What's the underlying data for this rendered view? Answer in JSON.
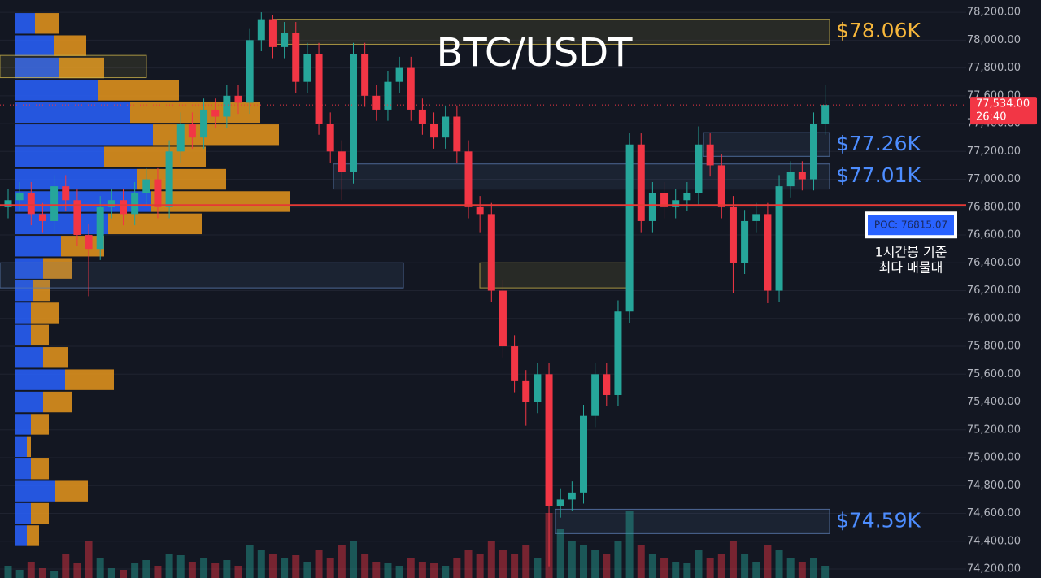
{
  "chart_data": {
    "type": "candlestick",
    "title": "BTC/USDT",
    "ylim": [
      74136,
      78288
    ],
    "yticks": [
      {
        "value": 78200,
        "label": "78,200.00"
      },
      {
        "value": 78000,
        "label": "78,000.00"
      },
      {
        "value": 77800,
        "label": "77,800.00"
      },
      {
        "value": 77600,
        "label": "77,600.00"
      },
      {
        "value": 77400,
        "label": "77,400.00"
      },
      {
        "value": 77200,
        "label": "77,200.00"
      },
      {
        "value": 77000,
        "label": "77,000.00"
      },
      {
        "value": 76800,
        "label": "76,800.00"
      },
      {
        "value": 76600,
        "label": "76,600.00"
      },
      {
        "value": 76400,
        "label": "76,400.00"
      },
      {
        "value": 76200,
        "label": "76,200.00"
      },
      {
        "value": 76000,
        "label": "76,000.00"
      },
      {
        "value": 75800,
        "label": "75,800.00"
      },
      {
        "value": 75600,
        "label": "75,600.00"
      },
      {
        "value": 75400,
        "label": "75,400.00"
      },
      {
        "value": 75200,
        "label": "75,200.00"
      },
      {
        "value": 75000,
        "label": "75,000.00"
      },
      {
        "value": 74800,
        "label": "74,800.00"
      },
      {
        "value": 74600,
        "label": "74,600.00"
      },
      {
        "value": 74400,
        "label": "74,400.00"
      },
      {
        "value": 74200,
        "label": "74,200.00"
      }
    ],
    "grid": true,
    "up_color": "#26a69a",
    "down_color": "#f23645",
    "ohlc": {
      "open": [
        76800,
        76850,
        76900,
        76750,
        76700,
        76950,
        76850,
        76600,
        76500,
        76800,
        76850,
        76750,
        76900,
        77000,
        76800,
        77200,
        77400,
        77300,
        77500,
        77450,
        77600,
        77550,
        78000,
        78150,
        77950,
        78050,
        77700,
        77900,
        77400,
        77200,
        77050,
        77900,
        77600,
        77500,
        77700,
        77800,
        77500,
        77400,
        77300,
        77450,
        77200,
        76800,
        76750,
        76200,
        75800,
        75550,
        75400,
        75600,
        74650,
        74700,
        74750,
        75300,
        75600,
        75450,
        76050,
        77250,
        76700,
        76900,
        76800,
        76850,
        76900,
        77250,
        77100,
        76800,
        76400,
        76700,
        76750,
        76200,
        76950,
        77050,
        77000,
        77400
      ],
      "high": [
        76930,
        76980,
        76980,
        76830,
        77030,
        77030,
        76930,
        76680,
        76880,
        76930,
        76930,
        76980,
        77080,
        77080,
        77280,
        77480,
        77480,
        77580,
        77580,
        77680,
        77680,
        78080,
        78200,
        78180,
        78130,
        78130,
        77980,
        77980,
        77480,
        77280,
        77980,
        77980,
        77680,
        77780,
        77880,
        77880,
        77580,
        77480,
        77530,
        77530,
        77280,
        76880,
        76830,
        76280,
        75880,
        75630,
        75680,
        75680,
        74780,
        74830,
        75380,
        75680,
        75680,
        76130,
        77330,
        77330,
        76980,
        76980,
        76930,
        76980,
        77380,
        77330,
        77180,
        76880,
        76780,
        76830,
        76830,
        77030,
        77130,
        77130,
        77480,
        77680
      ],
      "low": [
        76720,
        76770,
        76670,
        76620,
        76620,
        76770,
        76520,
        76160,
        76420,
        76720,
        76670,
        76670,
        76820,
        76720,
        76720,
        77120,
        77220,
        77220,
        77370,
        77370,
        77470,
        77470,
        77920,
        77870,
        77870,
        77620,
        77620,
        77320,
        77120,
        76850,
        76970,
        77520,
        77420,
        77420,
        77620,
        77420,
        77320,
        77220,
        77220,
        77120,
        76720,
        76620,
        76120,
        75720,
        75470,
        75230,
        75320,
        74220,
        74570,
        74620,
        74670,
        75220,
        75370,
        75370,
        75970,
        76620,
        76620,
        76720,
        76720,
        76770,
        76820,
        77020,
        76720,
        76180,
        76320,
        76620,
        76110,
        76120,
        76870,
        76920,
        76920,
        77320
      ],
      "close": [
        76850,
        76900,
        76750,
        76700,
        76950,
        76850,
        76600,
        76500,
        76800,
        76850,
        76750,
        76900,
        77000,
        76800,
        77200,
        77400,
        77300,
        77500,
        77450,
        77600,
        77550,
        78000,
        78150,
        77950,
        78050,
        77700,
        77900,
        77400,
        77200,
        77050,
        77900,
        77600,
        77500,
        77700,
        77800,
        77500,
        77400,
        77300,
        77450,
        77200,
        76800,
        76750,
        76200,
        75800,
        75550,
        75400,
        75600,
        74650,
        74700,
        74750,
        75300,
        75600,
        75450,
        76050,
        77250,
        76700,
        76900,
        76800,
        76850,
        76900,
        77250,
        77100,
        76800,
        76400,
        76700,
        76750,
        76200,
        76950,
        77050,
        77000,
        77400,
        77534
      ]
    },
    "volume": [
      15,
      10,
      20,
      12,
      8,
      30,
      18,
      45,
      25,
      12,
      10,
      18,
      22,
      15,
      30,
      28,
      20,
      25,
      18,
      22,
      15,
      40,
      35,
      30,
      25,
      28,
      20,
      35,
      25,
      40,
      45,
      30,
      20,
      18,
      15,
      25,
      20,
      18,
      15,
      25,
      35,
      30,
      45,
      35,
      30,
      40,
      25,
      80,
      60,
      45,
      40,
      35,
      30,
      45,
      82,
      40,
      30,
      25,
      20,
      18,
      35,
      25,
      30,
      45,
      30,
      20,
      40,
      35,
      25,
      20,
      25,
      15
    ],
    "volume_profile": {
      "bins": [
        74360,
        74520,
        74680,
        74840,
        75000,
        75160,
        75320,
        75480,
        75640,
        75800,
        75960,
        76120,
        76280,
        76440,
        76600,
        76760,
        76920,
        77080,
        77240,
        77400,
        77560,
        77720,
        77880,
        78040,
        78200
      ],
      "buy": [
        15,
        20,
        50,
        20,
        15,
        20,
        35,
        62,
        35,
        20,
        20,
        22,
        35,
        57,
        115,
        168,
        150,
        110,
        170,
        142,
        102,
        55,
        48,
        25
      ],
      "sell": [
        15,
        22,
        40,
        22,
        5,
        22,
        35,
        60,
        30,
        22,
        35,
        22,
        35,
        53,
        115,
        170,
        110,
        125,
        155,
        160,
        100,
        55,
        40,
        30
      ],
      "buy_color": "#2962ff",
      "sell_color": "#e8961c"
    },
    "zones": [
      {
        "label": "$78.06K",
        "range": [
          77970,
          78150
        ],
        "color": "#c9b24a",
        "label_color": "#f7b73b"
      },
      {
        "label": "$77.26K",
        "range": [
          77165,
          77335
        ],
        "color": "#5a7ab0",
        "label_color": "#4d8dff"
      },
      {
        "label": "$77.01K",
        "range": [
          76930,
          77110
        ],
        "color": "#5a7ab0",
        "label_color": "#4d8dff"
      },
      {
        "label": "$74.59K",
        "range": [
          74455,
          74630
        ],
        "color": "#5a7ab0",
        "label_color": "#4d8dff"
      },
      {
        "range": [
          77730,
          77890
        ],
        "color": "#c9b24a"
      },
      {
        "range": [
          76220,
          76400
        ],
        "color": "#5a7ab0"
      },
      {
        "range": [
          76220,
          76400
        ],
        "color": "#c9b24a"
      }
    ],
    "poc": {
      "value": 76815.07,
      "label": "POC: 76815.07",
      "color": "#e53935",
      "note": [
        "1시간봉 기준",
        "최다 매물대"
      ]
    },
    "last_price": {
      "value": 77534,
      "label": "77,534.00",
      "countdown": "26:40",
      "color": "#f23645"
    }
  }
}
